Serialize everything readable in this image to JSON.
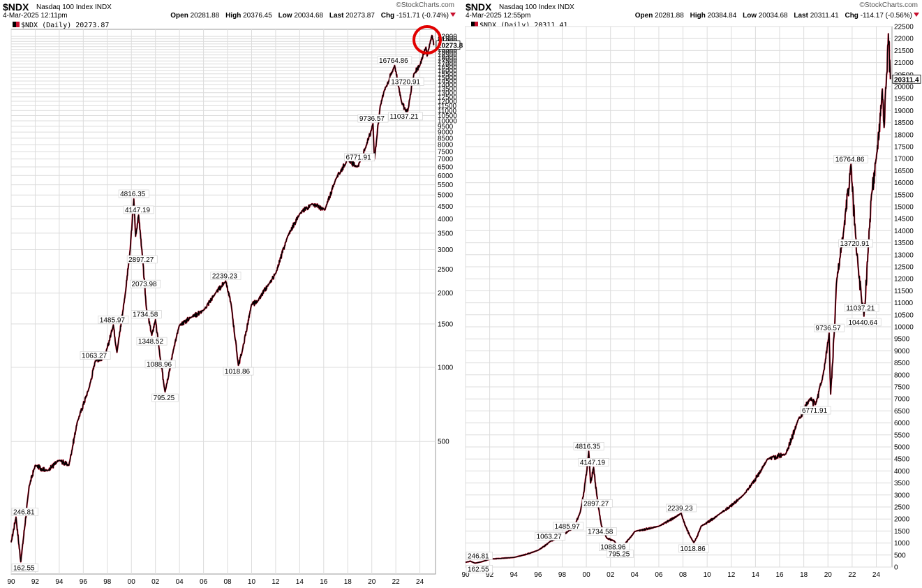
{
  "panels": [
    {
      "symbol": "$NDX",
      "name": "Nasdaq 100 Index  INDX",
      "date_time": "4-Mar-2025 12:11pm",
      "brand": "©StockCharts.com",
      "ohlc": {
        "open_label": "Open",
        "open": "20281.88",
        "high_label": "High",
        "high": "20376.45",
        "low_label": "Low",
        "low": "20034.68",
        "last_label": "Last",
        "last": "20273.87",
        "chg_label": "Chg",
        "chg": "-151.71 (-0.74%)"
      },
      "legend": "$NDX (Daily) 20273.87",
      "last_value_label": "20273.8"
    },
    {
      "symbol": "$NDX",
      "name": "Nasdaq 100 Index  INDX",
      "date_time": "4-Mar-2025 12:55pm",
      "brand": "©StockCharts.com",
      "ohlc": {
        "open_label": "Open",
        "open": "20281.88",
        "high_label": "High",
        "high": "20384.84",
        "low_label": "Low",
        "low": "20034.68",
        "last_label": "Last",
        "last": "20311.41",
        "chg_label": "Chg",
        "chg": "-114.17 (-0.56%)"
      },
      "legend": "$NDX (Daily) 20311.41",
      "last_value_label": "20311.4"
    }
  ],
  "chart_data": [
    {
      "type": "line",
      "scale": "log",
      "title": "$NDX (Daily) 20273.87",
      "x_tick_labels": [
        "90",
        "92",
        "94",
        "96",
        "98",
        "00",
        "02",
        "04",
        "06",
        "08",
        "10",
        "12",
        "14",
        "16",
        "18",
        "20",
        "22",
        "24"
      ],
      "y_tick_labels": [
        "500",
        "1000",
        "1500",
        "2000",
        "2500",
        "3000",
        "3500",
        "4000",
        "4500",
        "5000",
        "5500",
        "6000",
        "6500",
        "7000",
        "7500",
        "8000",
        "8500",
        "9000",
        "9500",
        "10000",
        "10500",
        "11000",
        "11500",
        "12000",
        "12500",
        "13000",
        "13500",
        "14000",
        "14500",
        "15000",
        "15500",
        "16000",
        "16500",
        "17000",
        "17500",
        "18000",
        "18500",
        "19000",
        "19500",
        "20000",
        "20500",
        "21000",
        "21500",
        "22000"
      ],
      "series": [
        {
          "x": [
            1990.0,
            1990.4,
            1990.8,
            1991.5,
            1992.0,
            1993.0,
            1994.0,
            1994.8,
            1995.5,
            1996.5,
            1997.0,
            1997.8,
            1998.5,
            1998.8,
            1999.5,
            1999.9,
            2000.2,
            2000.35,
            2000.6,
            2000.9,
            2001.25,
            2001.7,
            2002.0,
            2002.4,
            2002.8,
            2003.5,
            2004.0,
            2005.0,
            2006.0,
            2007.0,
            2007.85,
            2008.3,
            2008.9,
            2009.2,
            2010.0,
            2010.5,
            2011.5,
            2012.0,
            2013.0,
            2014.0,
            2015.0,
            2016.1,
            2017.0,
            2018.0,
            2018.75,
            2018.98,
            2019.5,
            2020.1,
            2020.22,
            2020.7,
            2021.0,
            2021.9,
            2022.5,
            2022.8,
            2023.0,
            2023.5,
            2024.0,
            2024.5,
            2024.6,
            2025.0,
            2025.17
          ],
          "y": [
            195,
            246.81,
            162.55,
            330,
            400,
            380,
            420,
            400,
            600,
            830,
            1063.27,
            1100,
            1485.97,
            1150,
            2000,
            3000,
            4816.35,
            3400,
            4147.19,
            2897.27,
            1734.58,
            1348.52,
            1560,
            1088.96,
            795.25,
            1180,
            1480,
            1600,
            1700,
            2000,
            2239.23,
            1800,
            1018.86,
            1150,
            1800,
            1850,
            2200,
            2400,
            3400,
            4200,
            4600,
            4350,
            5800,
            7000,
            6500,
            6771.91,
            7800,
            9736.57,
            7000,
            11500,
            13100,
            16764.86,
            11800,
            11037.21,
            11000,
            15500,
            16800,
            19900,
            18300,
            22200,
            20273.87
          ]
        }
      ],
      "annotations": [
        "246.81",
        "162.55",
        "1063.27",
        "1485.97",
        "4816.35",
        "4147.19",
        "2897.27",
        "2073.98",
        "1734.58",
        "1348.52",
        "1088.96",
        "795.25",
        "2239.23",
        "1018.86",
        "9736.57",
        "6771.91",
        "16764.86",
        "13720.91",
        "11037.21"
      ]
    },
    {
      "type": "line",
      "scale": "linear",
      "title": "$NDX (Daily) 20311.41",
      "ylim": [
        0,
        22500
      ],
      "x_tick_labels": [
        "90",
        "92",
        "94",
        "96",
        "98",
        "00",
        "02",
        "04",
        "06",
        "08",
        "10",
        "12",
        "14",
        "16",
        "18",
        "20",
        "22",
        "24"
      ],
      "y_tick_labels": [
        "0",
        "500",
        "1000",
        "1500",
        "2000",
        "2500",
        "3000",
        "3500",
        "4000",
        "4500",
        "5000",
        "5500",
        "6000",
        "6500",
        "7000",
        "7500",
        "8000",
        "8500",
        "9000",
        "9500",
        "10000",
        "10500",
        "11000",
        "11500",
        "12000",
        "12500",
        "13000",
        "13500",
        "14000",
        "14500",
        "15000",
        "15500",
        "16000",
        "16500",
        "17000",
        "17500",
        "18000",
        "18500",
        "19000",
        "19500",
        "20000",
        "20500",
        "21000",
        "21500",
        "22000",
        "22500"
      ],
      "series": [
        {
          "x": [
            1990.0,
            1990.4,
            1990.8,
            1992.0,
            1994.0,
            1996.0,
            1997.0,
            1998.0,
            1998.5,
            1999.0,
            1999.5,
            2000.2,
            2000.35,
            2000.6,
            2000.9,
            2001.25,
            2001.7,
            2002.3,
            2002.8,
            2004.0,
            2006.0,
            2007.85,
            2008.9,
            2009.5,
            2011.0,
            2013.0,
            2015.0,
            2016.5,
            2017.5,
            2018.5,
            2018.98,
            2019.6,
            2020.1,
            2020.22,
            2020.7,
            2021.3,
            2021.9,
            2022.3,
            2022.5,
            2022.8,
            2022.98,
            2023.3,
            2023.6,
            2024.0,
            2024.5,
            2024.65,
            2025.0,
            2025.17
          ],
          "y": [
            195,
            246.81,
            162.55,
            330,
            400,
            700,
            1063.27,
            1300,
            1485.97,
            1700,
            2300,
            4816.35,
            3500,
            4147.19,
            2897.27,
            1734.58,
            1200,
            1088.96,
            795.25,
            1480,
            1700,
            2239.23,
            1018.86,
            1700,
            2200,
            3000,
            4500,
            4700,
            6100,
            7000,
            6771.91,
            8000,
            9736.57,
            7200,
            11800,
            14000,
            16764.86,
            13720.91,
            12500,
            11037.21,
            10440.64,
            13000,
            15500,
            17000,
            19900,
            18300,
            22200,
            20311.41
          ]
        }
      ],
      "annotations": [
        "246.81",
        "162.55",
        "1063.27",
        "1485.97",
        "4816.35",
        "4147.19",
        "2897.27",
        "1734.58",
        "1088.96",
        "795.25",
        "2239.23",
        "1018.86",
        "9736.57",
        "6771.91",
        "16764.86",
        "13720.91",
        "11037.21",
        "10440.64"
      ]
    }
  ]
}
